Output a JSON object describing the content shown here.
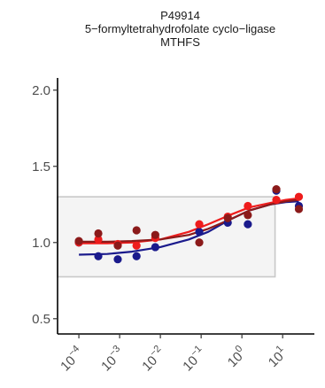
{
  "chart_data": {
    "type": "scatter",
    "title_lines": [
      "P49914",
      "5−formyltetrahydrofolate cyclo−ligase",
      "MTHFS"
    ],
    "xlabel": "",
    "ylabel": "",
    "x_scale": "log10",
    "xlim": [
      3e-05,
      60
    ],
    "ylim": [
      0.4,
      2.08
    ],
    "y_ticks": [
      0.5,
      1.0,
      1.5,
      2.0
    ],
    "y_tick_labels": [
      "0.5",
      "1.0",
      "1.5",
      "2.0"
    ],
    "x_ticks": [
      0.0001,
      0.001,
      0.01,
      0.1,
      1,
      10
    ],
    "x_tick_labels": [
      {
        "base": "10",
        "exp": "−4"
      },
      {
        "base": "10",
        "exp": "−3"
      },
      {
        "base": "10",
        "exp": "−2"
      },
      {
        "base": "10",
        "exp": "−1"
      },
      {
        "base": "10",
        "exp": "0"
      },
      {
        "base": "10",
        "exp": "1"
      }
    ],
    "reference_box": {
      "x": [
        3e-05,
        6.5
      ],
      "y": [
        0.775,
        1.3
      ],
      "fill": "#f4f4f4",
      "stroke": "#c8c8c8"
    },
    "series": [
      {
        "color": "#1a1a8c",
        "points": [
          {
            "x": 0.0001,
            "y": 1.0
          },
          {
            "x": 0.0003,
            "y": 0.91
          },
          {
            "x": 0.0009,
            "y": 0.89
          },
          {
            "x": 0.0026,
            "y": 0.91
          },
          {
            "x": 0.0075,
            "y": 0.97
          },
          {
            "x": 0.09,
            "y": 1.07
          },
          {
            "x": 0.45,
            "y": 1.13
          },
          {
            "x": 1.4,
            "y": 1.12
          },
          {
            "x": 7,
            "y": 1.34
          },
          {
            "x": 25,
            "y": 1.24
          }
        ],
        "curve": [
          {
            "x": 0.0001,
            "y": 0.92
          },
          {
            "x": 0.0005,
            "y": 0.925
          },
          {
            "x": 0.002,
            "y": 0.94
          },
          {
            "x": 0.01,
            "y": 0.97
          },
          {
            "x": 0.05,
            "y": 1.02
          },
          {
            "x": 0.15,
            "y": 1.07
          },
          {
            "x": 0.5,
            "y": 1.15
          },
          {
            "x": 1.5,
            "y": 1.21
          },
          {
            "x": 5,
            "y": 1.25
          },
          {
            "x": 12,
            "y": 1.265
          },
          {
            "x": 25,
            "y": 1.27
          }
        ]
      },
      {
        "color": "#ee1c1c",
        "points": [
          {
            "x": 0.0001,
            "y": 1.0
          },
          {
            "x": 0.0003,
            "y": 1.02
          },
          {
            "x": 0.0009,
            "y": 0.99
          },
          {
            "x": 0.0026,
            "y": 0.98
          },
          {
            "x": 0.0075,
            "y": 1.03
          },
          {
            "x": 0.09,
            "y": 1.12
          },
          {
            "x": 0.45,
            "y": 1.17
          },
          {
            "x": 1.4,
            "y": 1.24
          },
          {
            "x": 7,
            "y": 1.28
          },
          {
            "x": 25,
            "y": 1.3
          }
        ],
        "curve": [
          {
            "x": 0.0001,
            "y": 0.995
          },
          {
            "x": 0.0005,
            "y": 0.995
          },
          {
            "x": 0.002,
            "y": 1.0
          },
          {
            "x": 0.01,
            "y": 1.02
          },
          {
            "x": 0.05,
            "y": 1.07
          },
          {
            "x": 0.15,
            "y": 1.12
          },
          {
            "x": 0.5,
            "y": 1.18
          },
          {
            "x": 1.5,
            "y": 1.23
          },
          {
            "x": 5,
            "y": 1.26
          },
          {
            "x": 12,
            "y": 1.28
          },
          {
            "x": 25,
            "y": 1.29
          }
        ]
      },
      {
        "color": "#8b1a1a",
        "points": [
          {
            "x": 0.0001,
            "y": 1.01
          },
          {
            "x": 0.0003,
            "y": 1.06
          },
          {
            "x": 0.0009,
            "y": 0.98
          },
          {
            "x": 0.0026,
            "y": 1.08
          },
          {
            "x": 0.0075,
            "y": 1.05
          },
          {
            "x": 0.09,
            "y": 1.0
          },
          {
            "x": 0.45,
            "y": 1.16
          },
          {
            "x": 1.4,
            "y": 1.18
          },
          {
            "x": 7,
            "y": 1.35
          },
          {
            "x": 25,
            "y": 1.22
          }
        ],
        "curve": [
          {
            "x": 0.0001,
            "y": 1.005
          },
          {
            "x": 0.0005,
            "y": 1.005
          },
          {
            "x": 0.002,
            "y": 1.01
          },
          {
            "x": 0.01,
            "y": 1.02
          },
          {
            "x": 0.05,
            "y": 1.05
          },
          {
            "x": 0.15,
            "y": 1.09
          },
          {
            "x": 0.5,
            "y": 1.15
          },
          {
            "x": 1.5,
            "y": 1.21
          },
          {
            "x": 5,
            "y": 1.25
          },
          {
            "x": 12,
            "y": 1.27
          },
          {
            "x": 25,
            "y": 1.28
          }
        ]
      }
    ]
  }
}
